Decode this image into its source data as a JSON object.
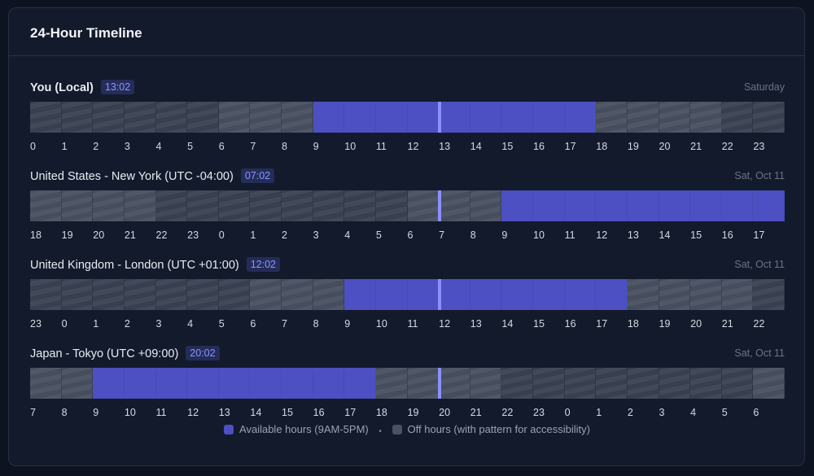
{
  "card": {
    "title": "24-Hour Timeline"
  },
  "zones": [
    {
      "label": "You (Local)",
      "time": "13:02",
      "date": "Saturday",
      "bold": true,
      "hours": [
        "0",
        "1",
        "2",
        "3",
        "4",
        "5",
        "6",
        "7",
        "8",
        "9",
        "10",
        "11",
        "12",
        "13",
        "14",
        "15",
        "16",
        "17",
        "18",
        "19",
        "20",
        "21",
        "22",
        "23"
      ],
      "cells": [
        "dark",
        "dark",
        "dark",
        "dark",
        "dark",
        "dark",
        "off",
        "off",
        "off",
        "avail",
        "avail",
        "avail",
        "avail",
        "avail",
        "avail",
        "avail",
        "avail",
        "avail",
        "off",
        "off",
        "off",
        "off",
        "dark",
        "dark"
      ],
      "now_fraction": 0.5431
    },
    {
      "label": "United States - New York (UTC -04:00)",
      "time": "07:02",
      "date": "Sat, Oct 11",
      "bold": false,
      "hours": [
        "18",
        "19",
        "20",
        "21",
        "22",
        "23",
        "0",
        "1",
        "2",
        "3",
        "4",
        "5",
        "6",
        "7",
        "8",
        "9",
        "10",
        "11",
        "12",
        "13",
        "14",
        "15",
        "16",
        "17"
      ],
      "cells": [
        "off",
        "off",
        "off",
        "off",
        "dark",
        "dark",
        "dark",
        "dark",
        "dark",
        "dark",
        "dark",
        "dark",
        "off",
        "off",
        "off",
        "avail",
        "avail",
        "avail",
        "avail",
        "avail",
        "avail",
        "avail",
        "avail",
        "avail"
      ],
      "now_fraction": 0.5431
    },
    {
      "label": "United Kingdom - London (UTC +01:00)",
      "time": "12:02",
      "date": "Sat, Oct 11",
      "bold": false,
      "hours": [
        "23",
        "0",
        "1",
        "2",
        "3",
        "4",
        "5",
        "6",
        "7",
        "8",
        "9",
        "10",
        "11",
        "12",
        "13",
        "14",
        "15",
        "16",
        "17",
        "18",
        "19",
        "20",
        "21",
        "22"
      ],
      "cells": [
        "dark",
        "dark",
        "dark",
        "dark",
        "dark",
        "dark",
        "dark",
        "off",
        "off",
        "off",
        "avail",
        "avail",
        "avail",
        "avail",
        "avail",
        "avail",
        "avail",
        "avail",
        "avail",
        "off",
        "off",
        "off",
        "off",
        "dark"
      ],
      "now_fraction": 0.5431
    },
    {
      "label": "Japan - Tokyo (UTC +09:00)",
      "time": "20:02",
      "date": "Sat, Oct 11",
      "bold": false,
      "hours": [
        "7",
        "8",
        "9",
        "10",
        "11",
        "12",
        "13",
        "14",
        "15",
        "16",
        "17",
        "18",
        "19",
        "20",
        "21",
        "22",
        "23",
        "0",
        "1",
        "2",
        "3",
        "4",
        "5",
        "6"
      ],
      "cells": [
        "off",
        "off",
        "avail",
        "avail",
        "avail",
        "avail",
        "avail",
        "avail",
        "avail",
        "avail",
        "avail",
        "off",
        "off",
        "off",
        "off",
        "dark",
        "dark",
        "dark",
        "dark",
        "dark",
        "dark",
        "dark",
        "dark",
        "off"
      ],
      "now_fraction": 0.5431
    }
  ],
  "legend": {
    "available": "Available hours (9AM-5PM)",
    "separator": "•",
    "off": "Off hours (with pattern for accessibility)",
    "available_color": "#4c50c2",
    "off_color": "#4a5161"
  },
  "colors": {
    "accent": "#8b90ff",
    "available": "#4c50c2",
    "off": "#4a5161",
    "background": "#131a2b"
  }
}
